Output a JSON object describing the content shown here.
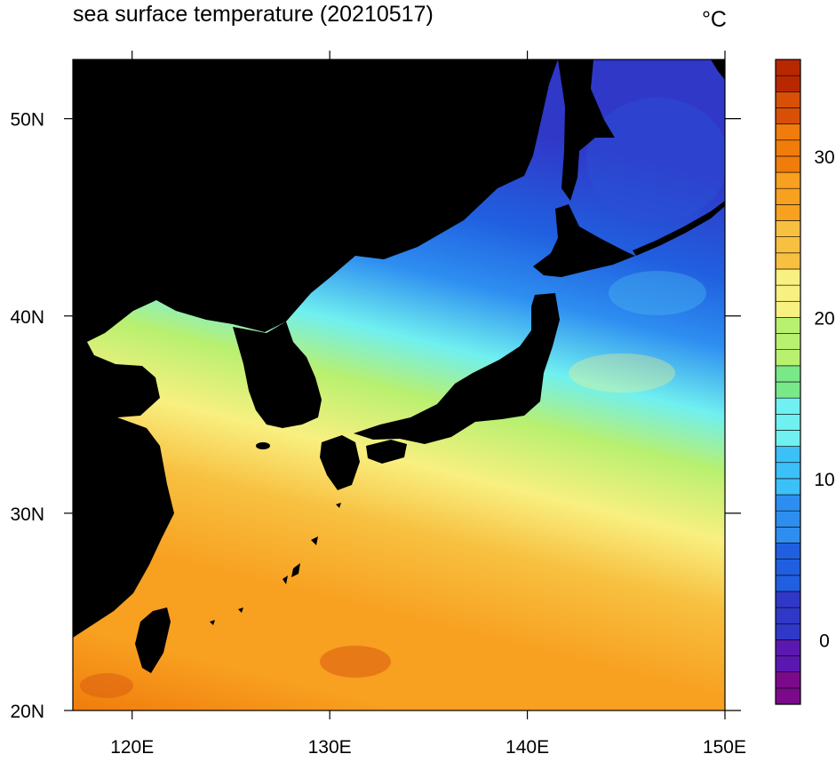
{
  "title": "sea surface temperature (20210517)",
  "unit": "°C",
  "map": {
    "lon_range": [
      117,
      150
    ],
    "lat_range": [
      20,
      53
    ],
    "x_ticks": [
      {
        "value": 120,
        "label": "120E"
      },
      {
        "value": 130,
        "label": "130E"
      },
      {
        "value": 140,
        "label": "140E"
      },
      {
        "value": 150,
        "label": "150E"
      }
    ],
    "y_ticks": [
      {
        "value": 20,
        "label": "20N"
      },
      {
        "value": 30,
        "label": "30N"
      },
      {
        "value": 40,
        "label": "40N"
      },
      {
        "value": 50,
        "label": "50N"
      }
    ],
    "land_color": "#000000"
  },
  "colorbar": {
    "min": -4,
    "max": 36,
    "tick_values": [
      0,
      10,
      20,
      30
    ],
    "tick_labels": [
      "0",
      "10",
      "20",
      "30"
    ],
    "stops": [
      {
        "v": -4,
        "c": "#7a0a8a"
      },
      {
        "v": -2,
        "c": "#5a18b0"
      },
      {
        "v": 0,
        "c": "#3038c8"
      },
      {
        "v": 3,
        "c": "#2060e0"
      },
      {
        "v": 6,
        "c": "#2e8ef0"
      },
      {
        "v": 9,
        "c": "#3cc0f8"
      },
      {
        "v": 12,
        "c": "#70f0f0"
      },
      {
        "v": 15,
        "c": "#78e888"
      },
      {
        "v": 17,
        "c": "#b8f070"
      },
      {
        "v": 20,
        "c": "#f8f080"
      },
      {
        "v": 23,
        "c": "#f8c040"
      },
      {
        "v": 26,
        "c": "#f8a020"
      },
      {
        "v": 29,
        "c": "#f07c0c"
      },
      {
        "v": 32,
        "c": "#d85008"
      },
      {
        "v": 34,
        "c": "#b82800"
      },
      {
        "v": 36,
        "c": "#800000"
      }
    ]
  }
}
